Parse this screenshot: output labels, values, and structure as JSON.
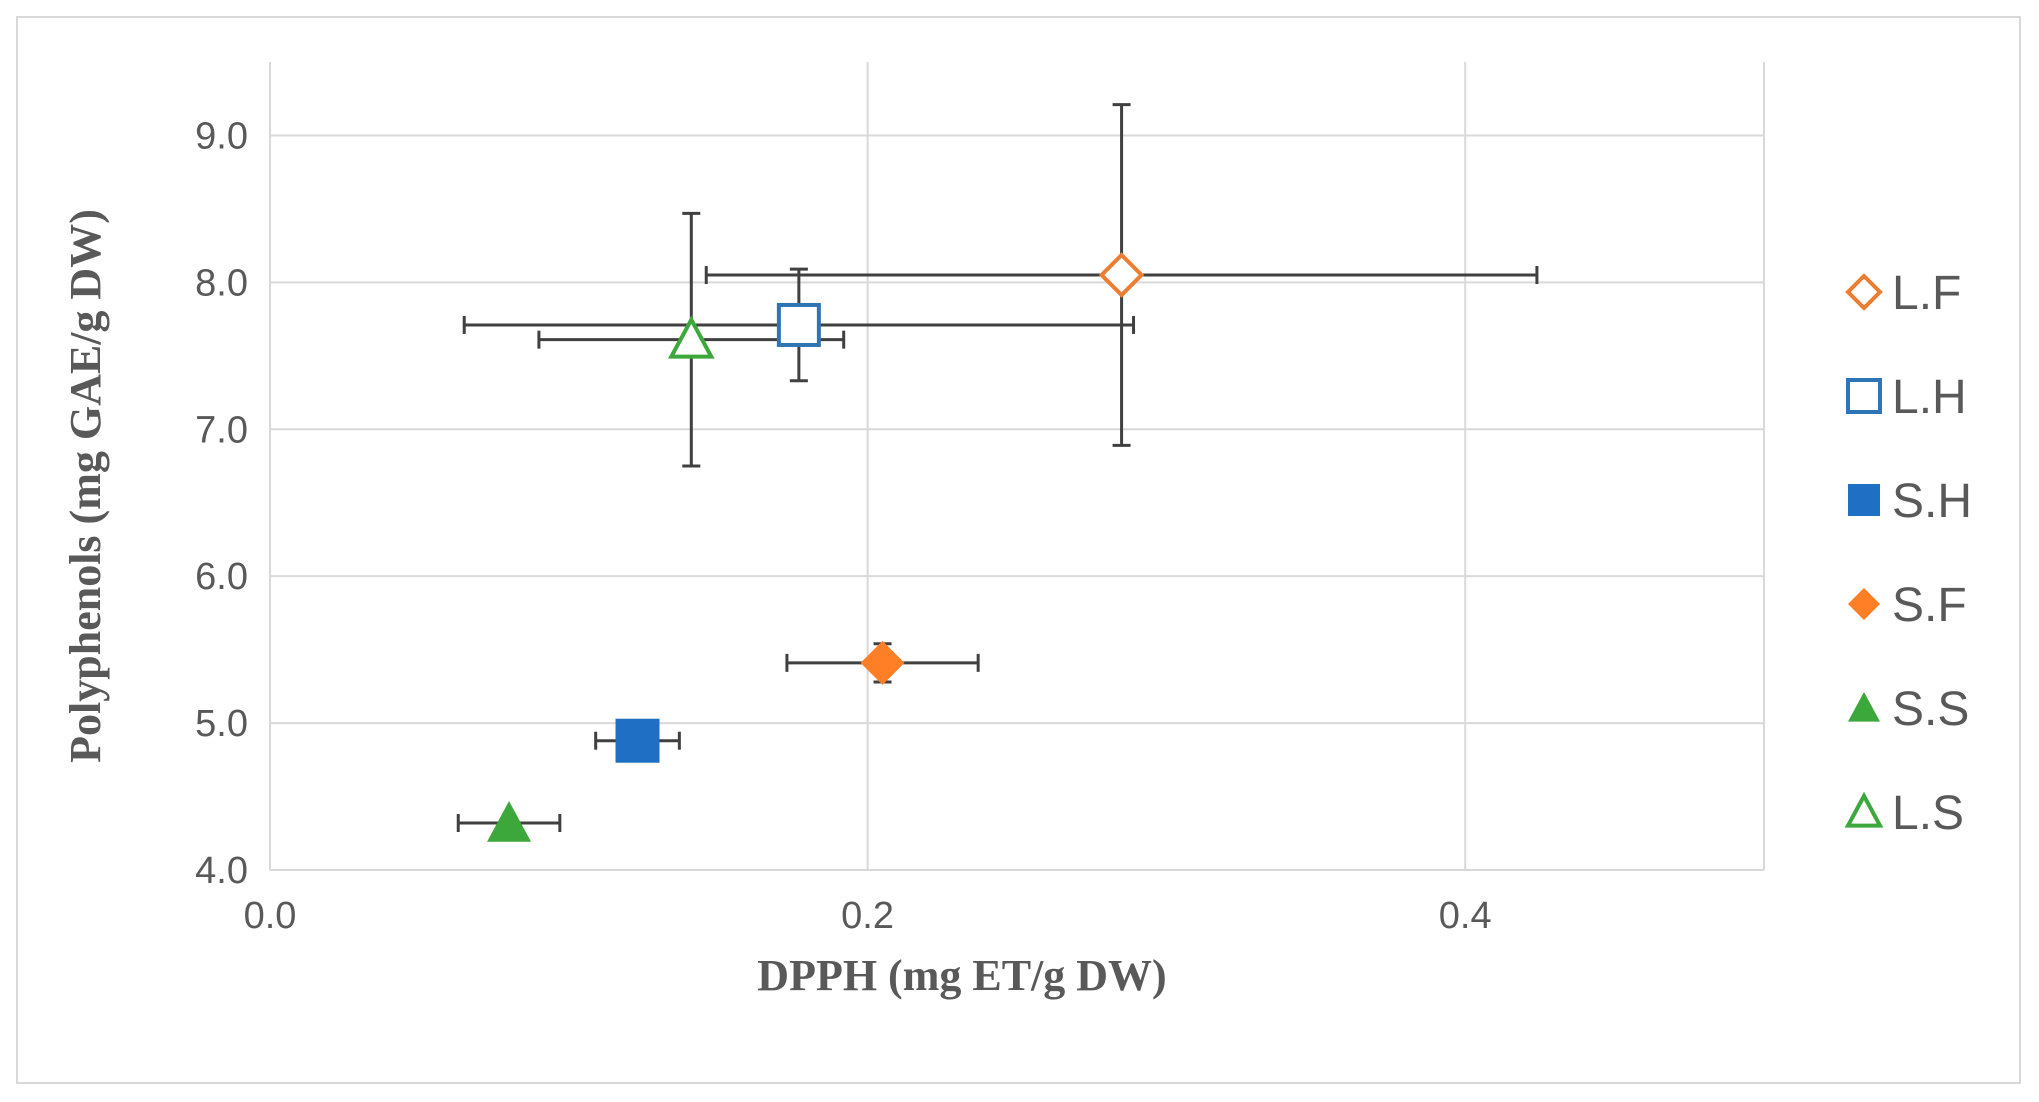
{
  "chart_data": {
    "type": "scatter",
    "title": "",
    "xlabel": "DPPH (mg ET/g DW)",
    "ylabel": "Polyphenols (mg GAE/g DW)",
    "xlim": [
      0.0,
      0.5
    ],
    "ylim": [
      4.0,
      9.5
    ],
    "xticks": [
      0.0,
      0.2,
      0.4
    ],
    "xtick_labels": [
      "0.0",
      "0.2",
      "0.4"
    ],
    "yticks": [
      4.0,
      5.0,
      6.0,
      7.0,
      8.0,
      9.0
    ],
    "ytick_labels": [
      "4.0",
      "5.0",
      "6.0",
      "7.0",
      "8.0",
      "9.0"
    ],
    "grid": true,
    "legend_position": "right",
    "series": [
      {
        "name": "L.F",
        "marker": "diamond",
        "filled": false,
        "color": "#ED7D31",
        "x": 0.285,
        "y": 8.05,
        "x_err": 0.139,
        "y_err": 1.16
      },
      {
        "name": "L.H",
        "marker": "square",
        "filled": false,
        "color": "#2E75B6",
        "x": 0.177,
        "y": 7.71,
        "x_err": 0.112,
        "y_err": 0.38
      },
      {
        "name": "S.H",
        "marker": "square",
        "filled": true,
        "color": "#1F6FC5",
        "x": 0.123,
        "y": 4.88,
        "x_err": 0.014,
        "y_err": 0.0
      },
      {
        "name": "S.F",
        "marker": "diamond",
        "filled": true,
        "color": "#FF7F27",
        "x": 0.205,
        "y": 5.41,
        "x_err": 0.032,
        "y_err": 0.13
      },
      {
        "name": "S.S",
        "marker": "triangle",
        "filled": true,
        "color": "#3CA83C",
        "x": 0.08,
        "y": 4.32,
        "x_err": 0.017,
        "y_err": 0.0
      },
      {
        "name": "L.S",
        "marker": "triangle",
        "filled": false,
        "color": "#3CA83C",
        "x": 0.141,
        "y": 7.61,
        "x_err": 0.051,
        "y_err": 0.86
      }
    ]
  }
}
